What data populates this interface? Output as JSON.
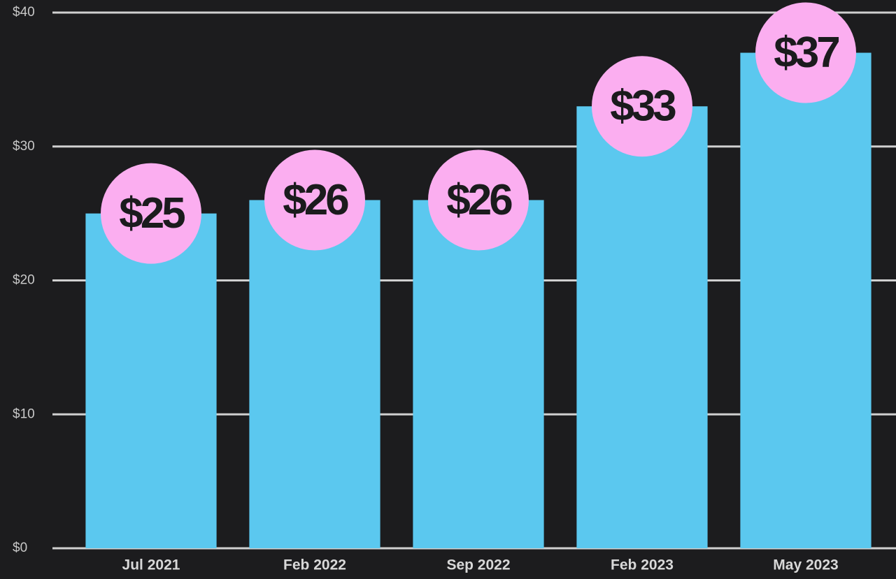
{
  "chart_data": {
    "type": "bar",
    "categories": [
      "Jul 2021",
      "Feb 2022",
      "Sep 2022",
      "Feb 2023",
      "May 2023"
    ],
    "values": [
      25,
      26,
      26,
      33,
      37
    ],
    "value_labels": [
      "$25",
      "$26",
      "$26",
      "$33",
      "$37"
    ],
    "color": "#5bc8ef",
    "label_color": "#fbaef0",
    "ylim": [
      0,
      40
    ],
    "yticks": [
      {
        "value": 0,
        "label": "$0"
      },
      {
        "value": 10,
        "label": "$10"
      },
      {
        "value": 20,
        "label": "$20"
      },
      {
        "value": 30,
        "label": "$30"
      },
      {
        "value": 40,
        "label": "$40"
      }
    ],
    "grid": true
  }
}
